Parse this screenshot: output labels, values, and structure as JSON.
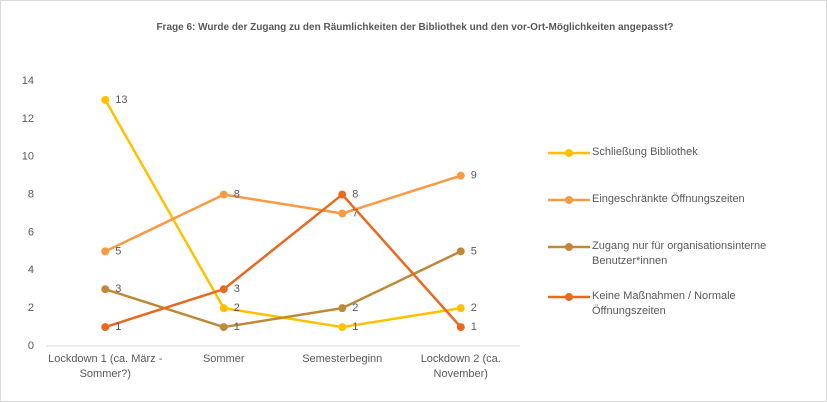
{
  "chart_data": {
    "type": "line",
    "title": "Frage 6: Wurde der Zugang zu den Räumlichkeiten der Bibliothek und den vor-Ort-Möglichkeiten angepasst?",
    "categories": [
      "Lockdown 1 (ca. März - Sommer?)",
      "Sommer",
      "Semesterbeginn",
      "Lockdown 2 (ca. November)"
    ],
    "series": [
      {
        "name": "Schließung Bibliothek",
        "color": "#ffc000",
        "values": [
          13,
          2,
          1,
          2
        ]
      },
      {
        "name": "Eingeschränkte Öffnungszeiten",
        "color": "#f79a46",
        "values": [
          5,
          8,
          7,
          9
        ]
      },
      {
        "name": "Zugang nur für organisationsinterne Benutzer*innen",
        "color": "#c0883a",
        "values": [
          3,
          1,
          2,
          5
        ]
      },
      {
        "name": "Keine Maßnahmen / Normale Öffnungszeiten",
        "color": "#e8691f",
        "values": [
          1,
          3,
          8,
          1
        ]
      }
    ],
    "ylim": [
      0,
      14
    ],
    "yticks": [
      0,
      2,
      4,
      6,
      8,
      10,
      12,
      14
    ],
    "grid": false,
    "legend": "right"
  }
}
